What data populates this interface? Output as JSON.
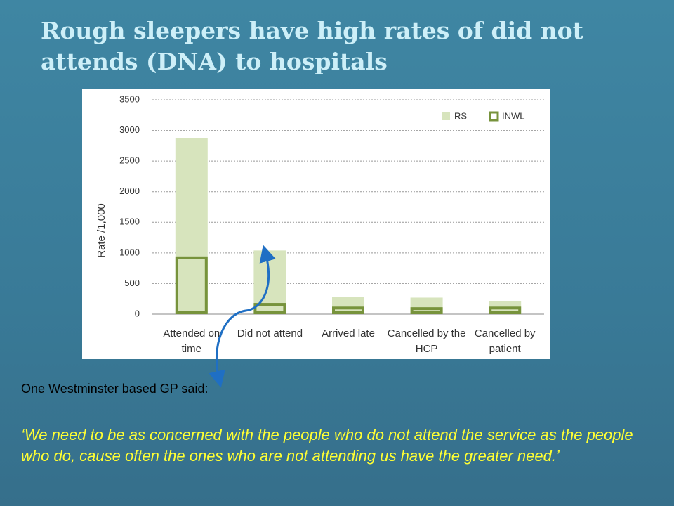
{
  "slide": {
    "title": "Rough sleepers have high rates of did not attends (DNA) to hospitals",
    "caption": "One Westminster based GP said:",
    "quote": "‘We need to be as concerned with the people who do not attend the service as the people who do, cause often the ones who are not attending us have the greater need.’"
  },
  "chart_data": {
    "type": "bar",
    "y_label": "Rate /1,000",
    "categories": [
      "Attended on time",
      "Did not attend",
      "Arrived late",
      "Cancelled by the HCP",
      "Cancelled by patient"
    ],
    "series": [
      {
        "name": "RS",
        "color": "#d7e4bd",
        "values": [
          2880,
          1040,
          280,
          270,
          210
        ]
      },
      {
        "name": "INWL",
        "color": "#77933c",
        "values": [
          920,
          160,
          100,
          90,
          100
        ]
      }
    ],
    "ylim": [
      0,
      3500
    ],
    "yticks": [
      0,
      500,
      1000,
      1500,
      2000,
      2500,
      3000,
      3500
    ],
    "grid": true,
    "legend": "top-right"
  }
}
